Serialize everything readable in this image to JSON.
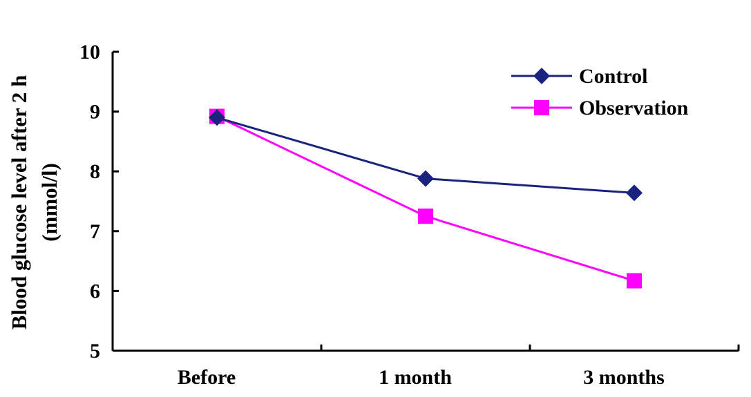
{
  "chart_data": {
    "type": "line",
    "categories": [
      "Before",
      "1 month",
      "3 months"
    ],
    "ylabel_line1": "Blood glucose level after 2 h",
    "ylabel_line2": "(mmol/l)",
    "ylim": [
      5,
      10
    ],
    "yticks": [
      "5",
      "6",
      "7",
      "8",
      "9",
      "10"
    ],
    "grid": false,
    "legend_position": "top-right",
    "series": [
      {
        "name": "Control",
        "values": [
          8.9,
          7.88,
          7.64
        ],
        "color": "#1a237e",
        "marker": "diamond"
      },
      {
        "name": "Observation",
        "values": [
          8.92,
          7.25,
          6.17
        ],
        "color": "#ff00ff",
        "marker": "square"
      }
    ]
  }
}
